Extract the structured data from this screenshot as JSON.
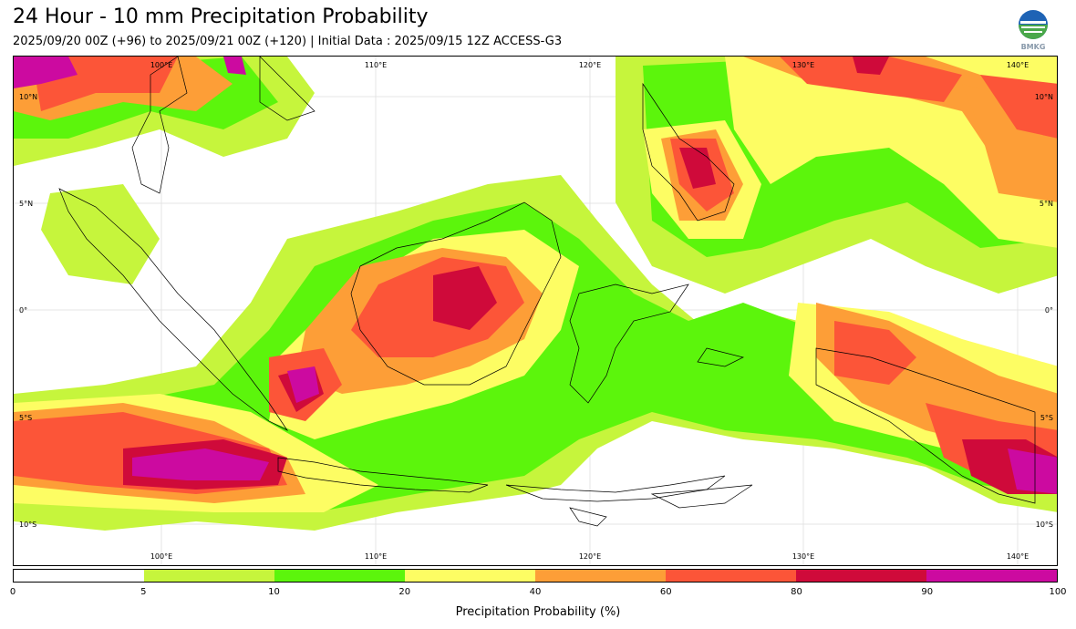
{
  "title": "24 Hour - 10 mm Precipitation Probability",
  "subtitle": "2025/09/20 00Z (+96) to 2025/09/21 00Z (+120) | Initial Data : 2025/09/15 12Z ACCESS-G3",
  "logo": {
    "icon": "bmkg-logo",
    "text": "BMKG"
  },
  "map": {
    "lon_ticks": [
      "100°E",
      "110°E",
      "120°E",
      "130°E",
      "140°E"
    ],
    "lat_ticks": [
      "10°N",
      "5°N",
      "0°",
      "5°S",
      "10°S"
    ]
  },
  "colorbar": {
    "title": "Precipitation Probability (%)",
    "ticks": [
      "0",
      "5",
      "10",
      "20",
      "40",
      "60",
      "80",
      "90",
      "100"
    ],
    "colors": [
      "#ffffff",
      "#c6f53c",
      "#5cf50c",
      "#fdfd63",
      "#fd9e37",
      "#fc5538",
      "#cf0a3a",
      "#cc0aa0"
    ]
  }
}
